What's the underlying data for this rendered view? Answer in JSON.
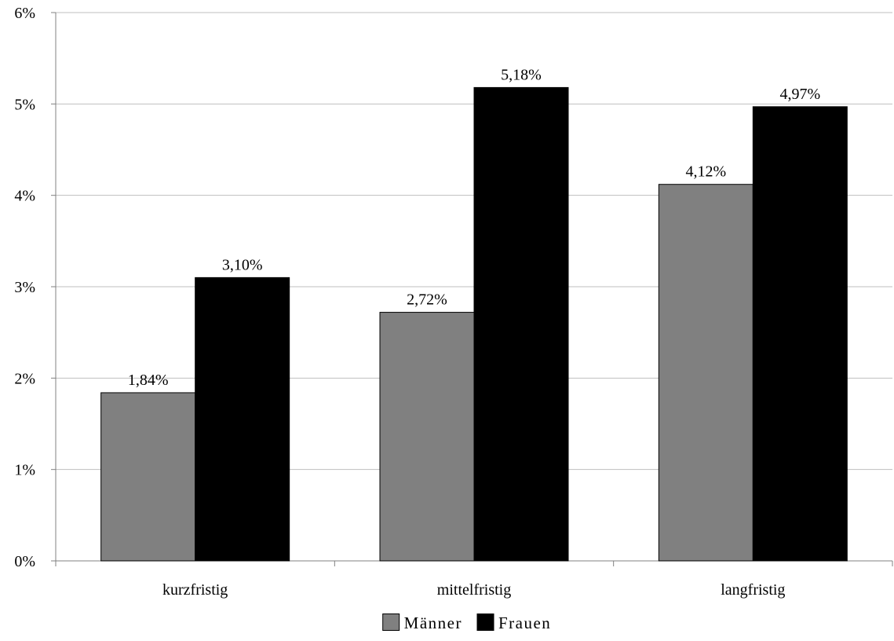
{
  "chart_data": {
    "type": "bar",
    "categories": [
      "kurzfristig",
      "mittelfristig",
      "langfristig"
    ],
    "series": [
      {
        "name": "Männer",
        "values": [
          1.84,
          2.72,
          4.12
        ],
        "labels": [
          "1,84%",
          "2,72%",
          "4,12%"
        ],
        "color": "#808080"
      },
      {
        "name": "Frauen",
        "values": [
          3.1,
          5.18,
          4.97
        ],
        "labels": [
          "3,10%",
          "5,18%",
          "4,97%"
        ],
        "color": "#000000"
      }
    ],
    "ylim": [
      0,
      6
    ],
    "yticks": [
      0,
      1,
      2,
      3,
      4,
      5,
      6
    ],
    "ytick_labels": [
      "0%",
      "1%",
      "2%",
      "3%",
      "4%",
      "5%",
      "6%"
    ],
    "grid": true,
    "legend_position": "bottom",
    "title": "",
    "xlabel": "",
    "ylabel": ""
  }
}
